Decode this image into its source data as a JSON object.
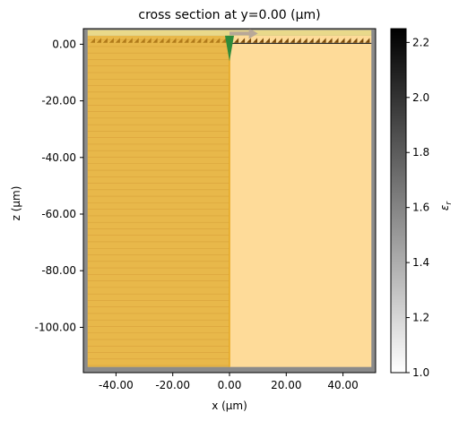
{
  "chart_data": {
    "type": "heatmap",
    "title": "cross section at y=0.00 (μm)",
    "xlabel": "x (μm)",
    "ylabel": "z (μm)",
    "xlim": [
      -51.5,
      51.5
    ],
    "ylim": [
      -116,
      5.5
    ],
    "x_ticks": [
      -40,
      -20,
      0,
      20,
      40
    ],
    "x_tick_labels": [
      "-40.00",
      "-20.00",
      "0.00",
      "20.00",
      "40.00"
    ],
    "y_ticks": [
      0,
      -20,
      -40,
      -60,
      -80,
      -100
    ],
    "y_tick_labels": [
      "0.00",
      "-20.00",
      "-40.00",
      "-60.00",
      "-80.00",
      "-100.00"
    ],
    "colorbar": {
      "label": "εr",
      "label_main": "ε",
      "label_sub": "r",
      "range": [
        1.0,
        2.25
      ],
      "ticks": [
        1.0,
        1.2,
        1.4,
        1.6,
        1.8,
        2.0,
        2.2
      ],
      "tick_labels": [
        "1.0",
        "1.2",
        "1.4",
        "1.6",
        "1.8",
        "2.0",
        "2.2"
      ],
      "colormap": "grayscale",
      "low_color": "#ffffff",
      "high_color": "#000000"
    },
    "regions": [
      {
        "name": "left-layered-medium",
        "x": [
          -50,
          0
        ],
        "z": [
          -114,
          3
        ],
        "color": "#e8b84a",
        "layer_lines_color": "#d9a23a"
      },
      {
        "name": "right-medium",
        "x": [
          0,
          50
        ],
        "z": [
          -114,
          3
        ],
        "color": "#fedb99"
      },
      {
        "name": "top-strip",
        "x": [
          -50,
          50
        ],
        "z": [
          3,
          5
        ],
        "color": "#e9d98a"
      }
    ],
    "boundary_color": "#8a8a8a",
    "vertical_interface": {
      "x": 0,
      "color": "#e6a820"
    },
    "source_marker": {
      "x": 0,
      "z": -2,
      "color": "#2e8b3a"
    },
    "direction_arrow": {
      "x": [
        0,
        10
      ],
      "z": 3.8,
      "color": "#b8a898"
    },
    "surface_structures_color": "#7a4a0a"
  }
}
